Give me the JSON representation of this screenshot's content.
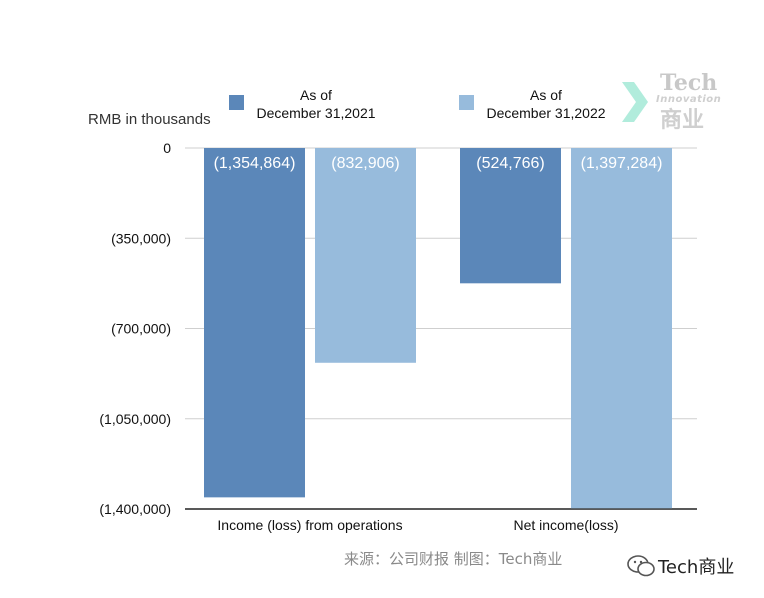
{
  "chart_data": {
    "type": "bar",
    "ylabel": "RMB in thousands",
    "ylim": [
      -1400000,
      0
    ],
    "yticks": [
      0,
      -350000,
      -700000,
      -1050000,
      -1400000
    ],
    "ytick_labels": [
      "0",
      "(350,000)",
      "(700,000)",
      "(1,050,000)",
      "(1,400,000)"
    ],
    "grid": true,
    "legend_position": "top",
    "categories": [
      "Income (loss) from operations",
      "Net income(loss)"
    ],
    "series": [
      {
        "name": "As of December 31,2021",
        "name_lines": [
          "As of",
          "December 31,2021"
        ],
        "color": "#5b87b9",
        "values": [
          -1354864,
          -524766
        ],
        "data_labels": [
          "(1,354,864)",
          "(524,766)"
        ]
      },
      {
        "name": "As of December 31,2022",
        "name_lines": [
          "As of",
          "December 31,2022"
        ],
        "color": "#97bbdc",
        "values": [
          -832906,
          -1397284
        ],
        "data_labels": [
          "(832,906)",
          "(1,397,284)"
        ]
      }
    ]
  },
  "source_text": "来源：公司财报 制图：Tech商业",
  "watermark": {
    "logo_top": "Tech",
    "logo_mid": "Innovation",
    "logo_bottom": "商业",
    "wechat_text": "Tech商业",
    "icon": "wechat-icon",
    "logo_accent": "#7de0c4"
  }
}
